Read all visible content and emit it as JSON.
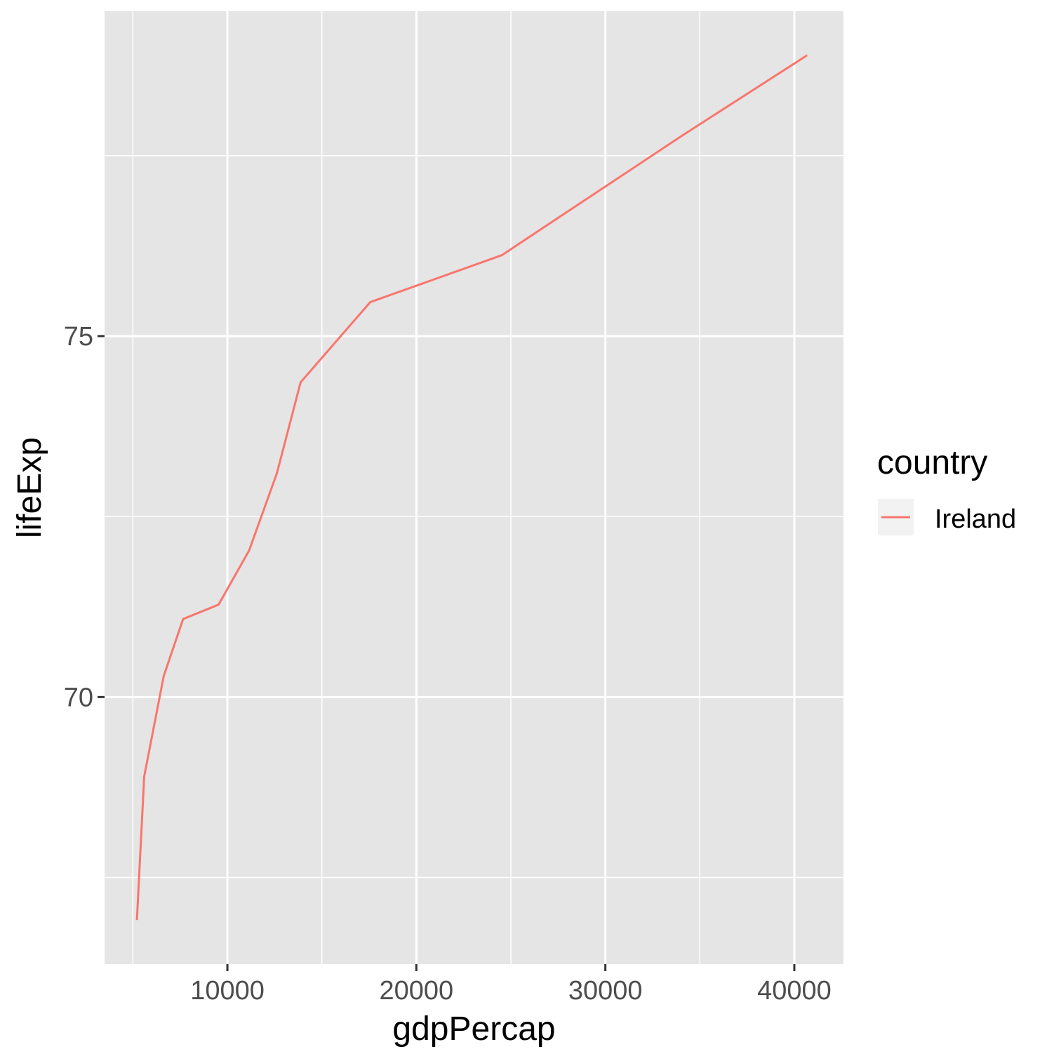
{
  "chart_data": {
    "type": "line",
    "xlabel": "gdpPercap",
    "ylabel": "lifeExp",
    "xlim": [
      3500,
      42600
    ],
    "ylim": [
      66.3,
      79.5
    ],
    "x_ticks": [
      10000,
      20000,
      30000,
      40000
    ],
    "x_tick_labels": [
      "10000",
      "20000",
      "30000",
      "40000"
    ],
    "y_ticks": [
      70,
      75
    ],
    "y_tick_labels": [
      "70",
      "75"
    ],
    "grid": true,
    "panel_background": "#e5e5e5",
    "legend": {
      "title": "country",
      "position": "right",
      "entries": [
        "Ireland"
      ]
    },
    "series": [
      {
        "name": "Ireland",
        "color": "#f8766d",
        "x": [
          5210,
          5599,
          6632,
          7656,
          9531,
          11151,
          12619,
          13873,
          17559,
          24522,
          34077,
          40676
        ],
        "y": [
          66.91,
          68.9,
          70.29,
          71.08,
          71.28,
          72.03,
          73.1,
          74.36,
          75.47,
          76.12,
          77.78,
          78.89
        ]
      }
    ]
  }
}
